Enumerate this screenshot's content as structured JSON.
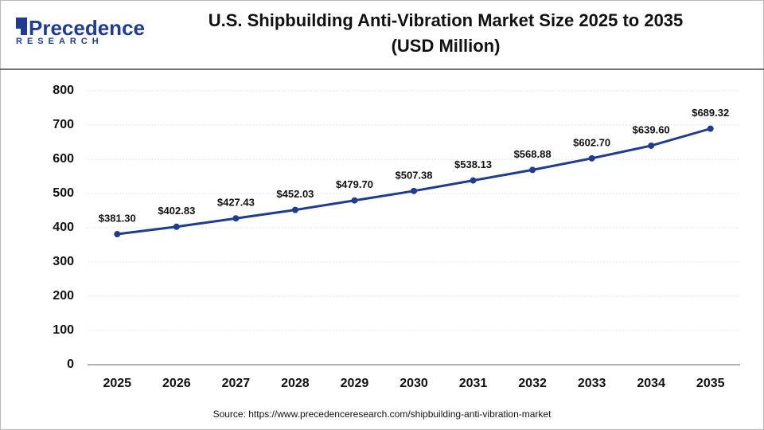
{
  "logo": {
    "name": "Precedence",
    "tagline": "RESEARCH"
  },
  "chart_data": {
    "type": "line",
    "title": [
      "U.S. Shipbuilding Anti-Vibration Market Size 2025 to 2035",
      "(USD Million)"
    ],
    "categories": [
      "2025",
      "2026",
      "2027",
      "2028",
      "2029",
      "2030",
      "2031",
      "2032",
      "2033",
      "2034",
      "2035"
    ],
    "series": [
      {
        "name": "U.S. Shipbuilding Anti-Vibration Market Size",
        "color": "#1f3c8f",
        "values": [
          381.3,
          402.83,
          427.43,
          452.03,
          479.7,
          507.38,
          538.13,
          568.88,
          602.7,
          639.6,
          689.32
        ],
        "value_labels": [
          "$381.30",
          "$402.83",
          "$427.43",
          "$452.03",
          "$479.70",
          "$507.38",
          "$538.13",
          "$568.88",
          "$602.70",
          "$639.60",
          "$689.32"
        ]
      }
    ],
    "ylim": [
      0,
      800
    ],
    "yticks": [
      0,
      100,
      200,
      300,
      400,
      500,
      600,
      700,
      800
    ],
    "grid": true,
    "source": "Source: https://www.precedenceresearch.com/shipbuilding-anti-vibration-market"
  }
}
